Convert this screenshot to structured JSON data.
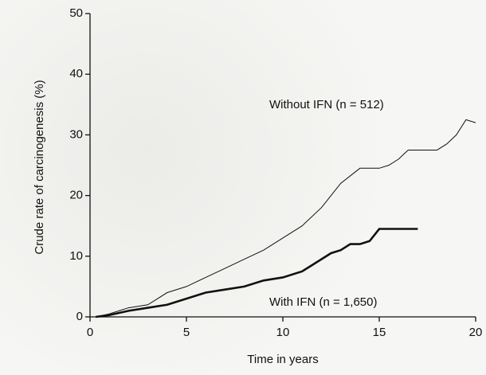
{
  "chart_data": {
    "type": "line",
    "xlabel": "Time in years",
    "ylabel": "Crude rate of carcinogenesis (%)",
    "xlim": [
      0,
      20
    ],
    "xticks": [
      0,
      5,
      10,
      15,
      20
    ],
    "ylim": [
      0,
      50
    ],
    "yticks": [
      0,
      10,
      20,
      30,
      40,
      50
    ],
    "grid": false,
    "series": [
      {
        "name": "Without IFN (n = 512)",
        "color": "#111111",
        "width": 1,
        "x": [
          0.3,
          1,
          1.5,
          2,
          3,
          3.5,
          4,
          5,
          6,
          7,
          8,
          9,
          10,
          11,
          12,
          13,
          14,
          15,
          15.5,
          16,
          16.5,
          18,
          18.5,
          19,
          19.5,
          20
        ],
        "values": [
          0,
          0.5,
          1,
          1.5,
          2,
          3,
          4,
          5,
          6.5,
          8,
          9.5,
          11,
          13,
          15,
          18,
          22,
          24.5,
          24.5,
          25,
          26,
          27.5,
          27.5,
          28.5,
          30,
          32.5,
          32
        ]
      },
      {
        "name": "With IFN (n = 1,650)",
        "color": "#111111",
        "width": 2.6,
        "x": [
          0.3,
          1,
          2,
          3,
          4,
          5,
          6,
          7,
          8,
          9,
          10,
          11,
          11.5,
          12,
          12.5,
          13,
          13.5,
          14,
          14.5,
          15,
          16,
          17
        ],
        "values": [
          0,
          0.3,
          1,
          1.5,
          2,
          3,
          4,
          4.5,
          5,
          6,
          6.5,
          7.5,
          8.5,
          9.5,
          10.5,
          11,
          12,
          12,
          12.5,
          14.5,
          14.5,
          14.5
        ]
      }
    ]
  }
}
